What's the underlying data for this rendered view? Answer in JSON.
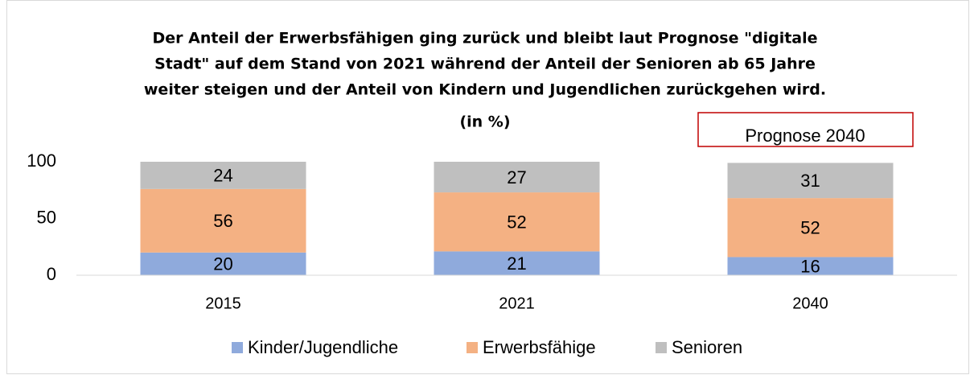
{
  "chart_data": {
    "type": "stacked_bar",
    "title": [
      "Der Anteil der Erwerbsfähigen ging zurück und bleibt laut Prognose \"digitale",
      "Stadt\" auf dem Stand von 2021 während der Anteil der Senioren ab 65 Jahre",
      "weiter steigen und der Anteil von Kindern und Jugendlichen zurückgehen wird.",
      "(in %)"
    ],
    "annotation": "Prognose 2040",
    "categories": [
      "2015",
      "2021",
      "2040"
    ],
    "series": [
      {
        "name": "Kinder/Jugendliche",
        "color": "#8faadc",
        "values": [
          20,
          21,
          16
        ]
      },
      {
        "name": "Erwerbsfähige",
        "color": "#f4b183",
        "values": [
          56,
          52,
          52
        ]
      },
      {
        "name": "Senioren",
        "color": "#bfbfbf",
        "values": [
          24,
          27,
          31
        ]
      }
    ],
    "ylim": [
      0,
      100
    ],
    "yticks": [
      0,
      50,
      100
    ],
    "grid": false,
    "legend": "bottom"
  }
}
